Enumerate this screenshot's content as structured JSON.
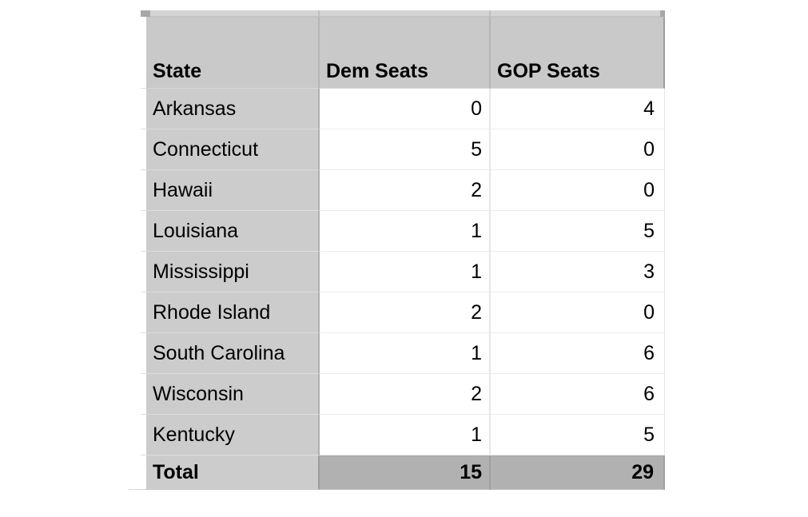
{
  "colors": {
    "header_bg": "#c9c9c9",
    "state_column_bg": "#cccccc",
    "total_values_bg": "#b1b1b1",
    "data_cell_bg": "#ffffff",
    "text": "#000000",
    "grid_light": "#e6e6e6",
    "grid_dark": "#b0b0b0"
  },
  "table": {
    "headers": [
      {
        "label": "State"
      },
      {
        "label": "Dem Seats"
      },
      {
        "label": "GOP Seats"
      }
    ],
    "rows": [
      {
        "state": "Arkansas",
        "dem": "0",
        "gop": "4"
      },
      {
        "state": "Connecticut",
        "dem": "5",
        "gop": "0"
      },
      {
        "state": "Hawaii",
        "dem": "2",
        "gop": "0"
      },
      {
        "state": "Louisiana",
        "dem": "1",
        "gop": "5"
      },
      {
        "state": "Mississippi",
        "dem": "1",
        "gop": "3"
      },
      {
        "state": "Rhode Island",
        "dem": "2",
        "gop": "0"
      },
      {
        "state": "South Carolina",
        "dem": "1",
        "gop": "6"
      },
      {
        "state": "Wisconsin",
        "dem": "2",
        "gop": "6"
      },
      {
        "state": "Kentucky",
        "dem": "1",
        "gop": "5"
      }
    ],
    "total": {
      "label": "Total",
      "dem": "15",
      "gop": "29"
    }
  },
  "chart_data": {
    "type": "table",
    "columns": [
      "State",
      "Dem Seats",
      "GOP Seats"
    ],
    "rows": [
      [
        "Arkansas",
        0,
        4
      ],
      [
        "Connecticut",
        5,
        0
      ],
      [
        "Hawaii",
        2,
        0
      ],
      [
        "Louisiana",
        1,
        5
      ],
      [
        "Mississippi",
        1,
        3
      ],
      [
        "Rhode Island",
        2,
        0
      ],
      [
        "South Carolina",
        1,
        6
      ],
      [
        "Wisconsin",
        2,
        6
      ],
      [
        "Kentucky",
        1,
        5
      ]
    ],
    "totals_row": [
      "Total",
      15,
      29
    ]
  }
}
